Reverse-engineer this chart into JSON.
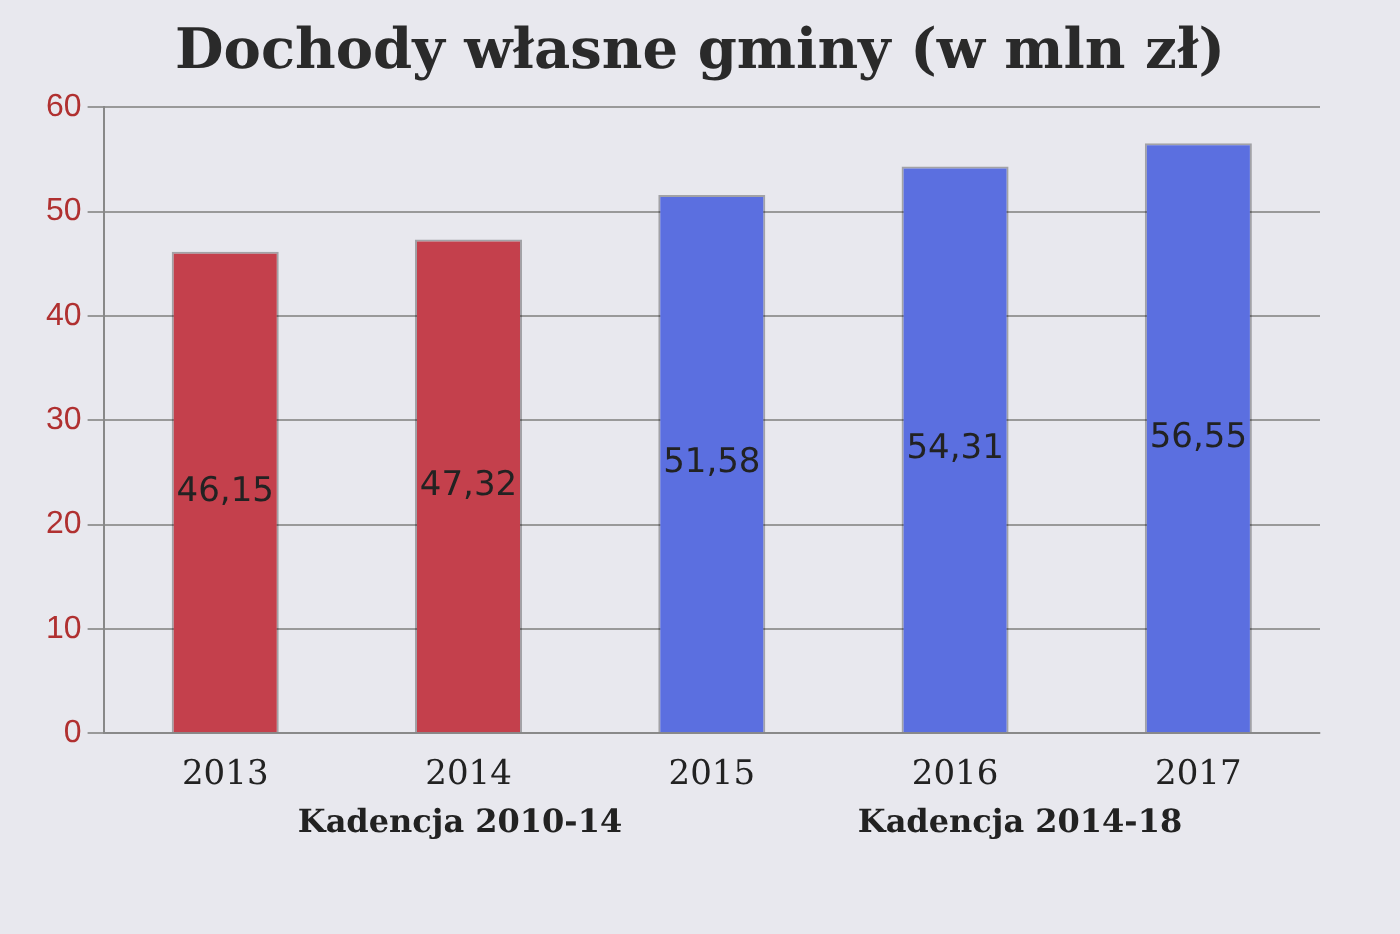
{
  "chart_data": {
    "type": "bar",
    "title": "Dochody własne gminy (w mln zł)",
    "categories": [
      "2013",
      "2014",
      "2015",
      "2016",
      "2017"
    ],
    "values": [
      46.15,
      47.32,
      51.58,
      54.31,
      56.55
    ],
    "value_labels": [
      "46,15",
      "47,32",
      "51,58",
      "54,31",
      "56,55"
    ],
    "colors": [
      "#c4404c",
      "#c4404c",
      "#5b6fe0",
      "#5b6fe0",
      "#5b6fe0"
    ],
    "ylim": [
      0,
      60
    ],
    "yticks": [
      0,
      10,
      20,
      30,
      40,
      50,
      60
    ],
    "grid": "y",
    "annotations": [
      "Kadencja 2010-14",
      "Kadencja 2014-18"
    ]
  }
}
